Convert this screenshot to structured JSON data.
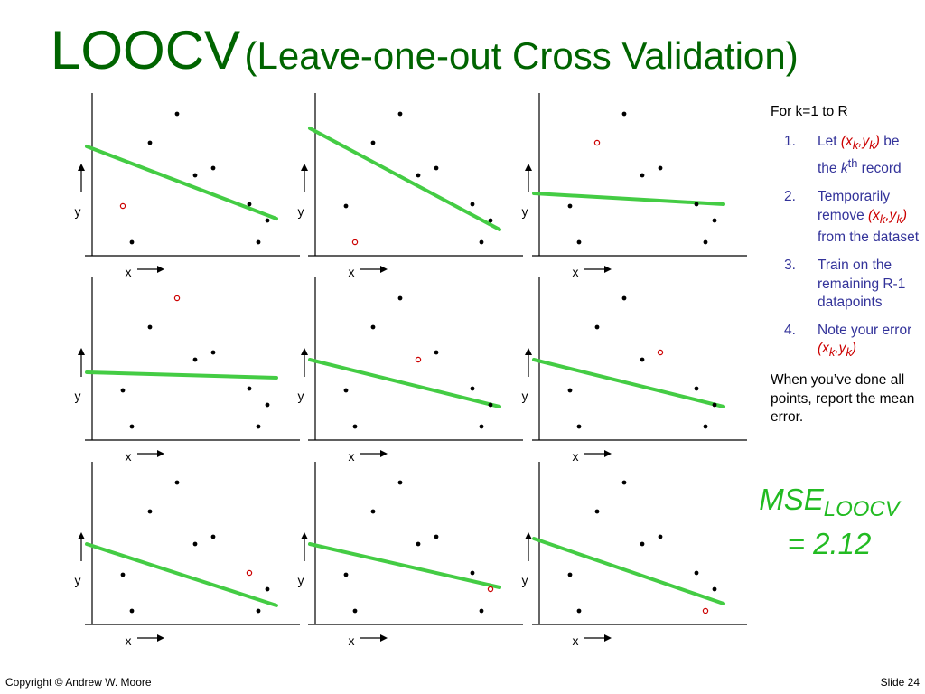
{
  "title": {
    "main": "LOOCV",
    "sub": "(Leave-one-out Cross Validation)"
  },
  "axis_labels": {
    "x": "x",
    "y": "y"
  },
  "colors": {
    "title": "#006400",
    "line": "#44cc44",
    "heldout": "#cc0000",
    "steps": "#33339a",
    "mse": "#22bb22"
  },
  "chart_data": {
    "type": "scatter",
    "description_points_xy": "9 panels, each a linear fit with one point held out",
    "points": [
      [
        1.0,
        2.5
      ],
      [
        1.5,
        0.5
      ],
      [
        2.5,
        6.0
      ],
      [
        4.0,
        7.6
      ],
      [
        5.0,
        4.2
      ],
      [
        6.0,
        4.6
      ],
      [
        8.0,
        2.6
      ],
      [
        9.0,
        1.7
      ],
      [
        8.5,
        0.5
      ]
    ],
    "panels": [
      {
        "heldout": 0,
        "line": [
          [
            -1,
            5.8
          ],
          [
            9.5,
            1.8
          ]
        ]
      },
      {
        "heldout": 1,
        "line": [
          [
            -1,
            6.8
          ],
          [
            9.5,
            1.2
          ]
        ]
      },
      {
        "heldout": 2,
        "line": [
          [
            -1,
            3.2
          ],
          [
            9.5,
            2.6
          ]
        ]
      },
      {
        "heldout": 3,
        "line": [
          [
            -1,
            3.5
          ],
          [
            9.5,
            3.2
          ]
        ]
      },
      {
        "heldout": 4,
        "line": [
          [
            -1,
            4.2
          ],
          [
            9.5,
            1.6
          ]
        ]
      },
      {
        "heldout": 5,
        "line": [
          [
            -1,
            4.2
          ],
          [
            9.5,
            1.6
          ]
        ]
      },
      {
        "heldout": 6,
        "line": [
          [
            -1,
            4.2
          ],
          [
            9.5,
            0.8
          ]
        ]
      },
      {
        "heldout": 7,
        "line": [
          [
            -1,
            4.2
          ],
          [
            9.5,
            1.8
          ]
        ]
      },
      {
        "heldout": 8,
        "line": [
          [
            -1,
            4.5
          ],
          [
            9.5,
            0.9
          ]
        ]
      }
    ]
  },
  "steps": {
    "intro": "For k=1 to R",
    "items": [
      {
        "num": "1.",
        "a": "Let ",
        "red": "(xk,yk)",
        "b": " be the kth record"
      },
      {
        "num": "2.",
        "a": "Temporarily remove ",
        "red": "(xk,yk)",
        "b": " from the dataset"
      },
      {
        "num": "3.",
        "a": "Train on the remaining R-1 datapoints",
        "red": "",
        "b": ""
      },
      {
        "num": "4.",
        "a": "Note your error ",
        "red": "(xk,yk)",
        "b": ""
      }
    ],
    "outro": "When you’ve done all points, report the mean error."
  },
  "mse": {
    "label": "MSE",
    "sub": "LOOCV",
    "value": "= 2.12"
  },
  "footer": {
    "copyright": "Copyright © Andrew W. Moore",
    "slide": "Slide 24"
  }
}
